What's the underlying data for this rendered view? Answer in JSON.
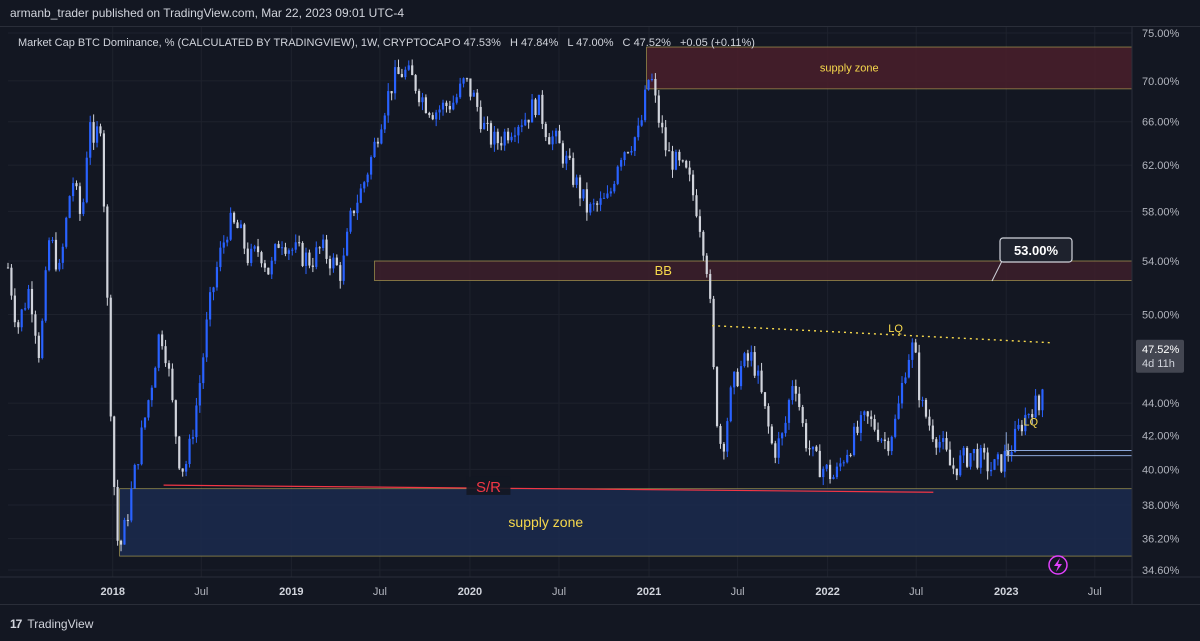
{
  "publisher": "armanb_trader published on TradingView.com, Mar 22, 2023 09:01 UTC-4",
  "footer": {
    "logo_text": "TradingView",
    "logo_mark": "17"
  },
  "legend": {
    "symbol": "Market Cap BTC Dominance, % (CALCULATED BY TRADINGVIEW), 1W, CRYPTOCAP",
    "open_label": "O",
    "open": "47.53%",
    "high_label": "H",
    "high": "47.84%",
    "low_label": "L",
    "low": "47.00%",
    "close_label": "C",
    "close": "47.52%",
    "change": "+0.05 (+0.11%)"
  },
  "colors": {
    "up": "#2962ff",
    "down": "#d1d4dc",
    "supply_zone": "#4a1f2a",
    "bb_zone": "#3d1f2a",
    "demand_zone": "#1b2a4e",
    "sr_line": "#f23645",
    "lq_line": "#f7d94c",
    "zone_text": "#f7d94c"
  },
  "icons": {
    "bolt": "lightning-icon"
  },
  "chart_data": {
    "type": "candlestick",
    "y_scale": "log",
    "ylim": [
      34.6,
      75
    ],
    "y_ticks": [
      {
        "value": 75,
        "label": "75.00%"
      },
      {
        "value": 70,
        "label": "70.00%"
      },
      {
        "value": 66,
        "label": "66.00%"
      },
      {
        "value": 62,
        "label": "62.00%"
      },
      {
        "value": 58,
        "label": "58.00%"
      },
      {
        "value": 54,
        "label": "54.00%"
      },
      {
        "value": 50,
        "label": "50.00%"
      },
      {
        "value": 44,
        "label": "44.00%"
      },
      {
        "value": 42,
        "label": "42.00%"
      },
      {
        "value": 40,
        "label": "40.00%"
      },
      {
        "value": 38,
        "label": "38.00%"
      },
      {
        "value": 36.2,
        "label": "36.20%"
      },
      {
        "value": 34.6,
        "label": "34.60%"
      }
    ],
    "xlim": [
      "2017-06-01",
      "2023-09-15"
    ],
    "x_ticks": [
      {
        "date": "2018-01-01",
        "label": "2018",
        "bold": true
      },
      {
        "date": "2018-07-01",
        "label": "Jul",
        "bold": false
      },
      {
        "date": "2019-01-01",
        "label": "2019",
        "bold": true
      },
      {
        "date": "2019-07-01",
        "label": "Jul",
        "bold": false
      },
      {
        "date": "2020-01-01",
        "label": "2020",
        "bold": true
      },
      {
        "date": "2020-07-01",
        "label": "Jul",
        "bold": false
      },
      {
        "date": "2021-01-01",
        "label": "2021",
        "bold": true
      },
      {
        "date": "2021-07-01",
        "label": "Jul",
        "bold": false
      },
      {
        "date": "2022-01-01",
        "label": "2022",
        "bold": true
      },
      {
        "date": "2022-07-01",
        "label": "Jul",
        "bold": false
      },
      {
        "date": "2023-01-01",
        "label": "2023",
        "bold": true
      },
      {
        "date": "2023-07-01",
        "label": "Jul",
        "bold": false
      }
    ],
    "price_path": [
      [
        "2017-06-01",
        53.5
      ],
      [
        "2017-06-20",
        49
      ],
      [
        "2017-07-15",
        52
      ],
      [
        "2017-08-05",
        47
      ],
      [
        "2017-08-25",
        56
      ],
      [
        "2017-09-15",
        53
      ],
      [
        "2017-10-10",
        61
      ],
      [
        "2017-10-30",
        57
      ],
      [
        "2017-11-15",
        67
      ],
      [
        "2017-11-25",
        62
      ],
      [
        "2017-12-05",
        68
      ],
      [
        "2017-12-15",
        58
      ],
      [
        "2017-12-25",
        46
      ],
      [
        "2018-01-07",
        37
      ],
      [
        "2018-01-14",
        35.5
      ],
      [
        "2018-01-28",
        37
      ],
      [
        "2018-02-10",
        39
      ],
      [
        "2018-03-01",
        42
      ],
      [
        "2018-03-20",
        45
      ],
      [
        "2018-04-08",
        49
      ],
      [
        "2018-04-22",
        47
      ],
      [
        "2018-05-06",
        43
      ],
      [
        "2018-05-20",
        40
      ],
      [
        "2018-06-03",
        40.5
      ],
      [
        "2018-06-17",
        43
      ],
      [
        "2018-07-01",
        46
      ],
      [
        "2018-07-15",
        50
      ],
      [
        "2018-08-05",
        54
      ],
      [
        "2018-08-26",
        57
      ],
      [
        "2018-09-16",
        56.5
      ],
      [
        "2018-10-07",
        54
      ],
      [
        "2018-10-28",
        55
      ],
      [
        "2018-11-18",
        53
      ],
      [
        "2018-12-09",
        56
      ],
      [
        "2018-12-30",
        55
      ],
      [
        "2019-01-20",
        54.5
      ],
      [
        "2019-02-10",
        54
      ],
      [
        "2019-03-03",
        55
      ],
      [
        "2019-03-24",
        54
      ],
      [
        "2019-04-14",
        53
      ],
      [
        "2019-05-05",
        58
      ],
      [
        "2019-05-26",
        60
      ],
      [
        "2019-06-16",
        63
      ],
      [
        "2019-07-07",
        67
      ],
      [
        "2019-07-28",
        70
      ],
      [
        "2019-08-18",
        71
      ],
      [
        "2019-09-08",
        70
      ],
      [
        "2019-09-29",
        68
      ],
      [
        "2019-10-20",
        67
      ],
      [
        "2019-11-10",
        67.5
      ],
      [
        "2019-12-01",
        68
      ],
      [
        "2019-12-22",
        70
      ],
      [
        "2020-01-12",
        68
      ],
      [
        "2020-02-02",
        65
      ],
      [
        "2020-02-23",
        64
      ],
      [
        "2020-03-15",
        65
      ],
      [
        "2020-04-05",
        66
      ],
      [
        "2020-04-26",
        66.5
      ],
      [
        "2020-05-17",
        68
      ],
      [
        "2020-06-07",
        65
      ],
      [
        "2020-06-28",
        64
      ],
      [
        "2020-07-19",
        62
      ],
      [
        "2020-08-09",
        60
      ],
      [
        "2020-08-30",
        58
      ],
      [
        "2020-09-20",
        58.5
      ],
      [
        "2020-10-11",
        59
      ],
      [
        "2020-11-01",
        63
      ],
      [
        "2020-11-22",
        64
      ],
      [
        "2020-12-13",
        65
      ],
      [
        "2021-01-03",
        71
      ],
      [
        "2021-01-17",
        67
      ],
      [
        "2021-02-07",
        63
      ],
      [
        "2021-02-28",
        62
      ],
      [
        "2021-03-21",
        61
      ],
      [
        "2021-04-11",
        58
      ],
      [
        "2021-05-02",
        53
      ],
      [
        "2021-05-16",
        44
      ],
      [
        "2021-05-30",
        41
      ],
      [
        "2021-06-20",
        45
      ],
      [
        "2021-07-11",
        46.5
      ],
      [
        "2021-08-01",
        47
      ],
      [
        "2021-08-22",
        44
      ],
      [
        "2021-09-12",
        41
      ],
      [
        "2021-10-03",
        42
      ],
      [
        "2021-10-24",
        46
      ],
      [
        "2021-11-14",
        42
      ],
      [
        "2021-12-05",
        40.5
      ],
      [
        "2021-12-26",
        40
      ],
      [
        "2022-01-16",
        39.5
      ],
      [
        "2022-02-06",
        41
      ],
      [
        "2022-02-27",
        42
      ],
      [
        "2022-03-20",
        43
      ],
      [
        "2022-04-10",
        42.5
      ],
      [
        "2022-05-01",
        41.5
      ],
      [
        "2022-05-22",
        43
      ],
      [
        "2022-06-12",
        47
      ],
      [
        "2022-06-26",
        47.8
      ],
      [
        "2022-07-10",
        44
      ],
      [
        "2022-07-31",
        42.5
      ],
      [
        "2022-08-21",
        41.5
      ],
      [
        "2022-09-11",
        40
      ],
      [
        "2022-10-02",
        40.5
      ],
      [
        "2022-10-23",
        41
      ],
      [
        "2022-11-13",
        40.5
      ],
      [
        "2022-12-04",
        40
      ],
      [
        "2022-12-25",
        40.5
      ],
      [
        "2023-01-15",
        41.5
      ],
      [
        "2023-02-05",
        43
      ],
      [
        "2023-02-26",
        44
      ],
      [
        "2023-03-12",
        43.5
      ],
      [
        "2023-03-20",
        47.52
      ]
    ],
    "zones": [
      {
        "name": "supply zone",
        "start": "2020-12-27",
        "end": "2023-09-15",
        "top": 73.5,
        "bottom": 69.2
      },
      {
        "name": "BB",
        "start": "2019-06-20",
        "end": "2023-09-15",
        "top": 54.0,
        "bottom": 52.5
      },
      {
        "name": "supply zone",
        "start": "2018-01-15",
        "end": "2023-09-15",
        "top": 38.9,
        "bottom": 35.3
      }
    ],
    "zone_labels": {
      "top_supply": "supply zone",
      "bb": "BB",
      "bottom_supply": "supply zone"
    },
    "sr": {
      "label": "S/R",
      "start": "2018-04-15",
      "end": "2022-08-05",
      "level_start": 39.1,
      "level_end": 38.7
    },
    "lq_line": {
      "label": "LQ",
      "start": "2021-05-10",
      "end": "2023-04-05",
      "level_start": 49.2,
      "level_end": 48.0
    },
    "lq2_label": "LQ",
    "callout": {
      "text": "53.00%"
    },
    "hlines": [
      {
        "start": "2023-01-01",
        "end": "2023-09-15",
        "level": 41.1
      },
      {
        "start": "2023-01-01",
        "end": "2023-09-15",
        "level": 40.8
      }
    ],
    "last_price": {
      "value": 47.52,
      "label": "47.52%",
      "countdown": "4d 11h"
    }
  }
}
